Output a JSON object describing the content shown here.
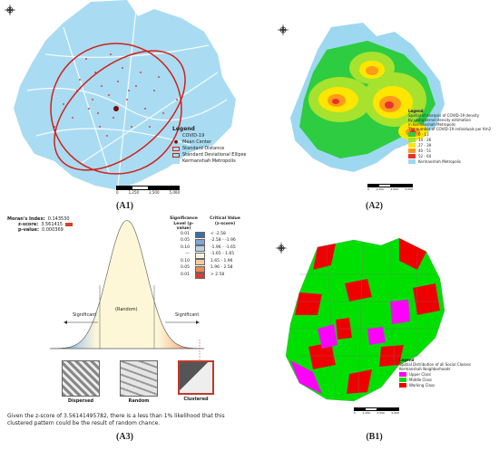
{
  "panels": {
    "a1": {
      "label": "(A1)",
      "legend_title": "Legend",
      "legend_items": [
        "COVID-19",
        "Mean Center",
        "Standard Distance",
        "Standard Deviational Ellipse",
        "Kermanshah Metropolis"
      ],
      "scale": [
        "0",
        "1,250",
        "2,500",
        "5,000"
      ]
    },
    "a2": {
      "label": "(A2)",
      "legend_lines": [
        "Legend",
        "Spatial of analysis of COVID-19 density",
        "by using kernel density estimation",
        "in Kermanshah Metropolis",
        "The number of COVID-19 individuals per Km2"
      ],
      "legend_classes": [
        "0 - 13",
        "14 - 26",
        "27 - 39",
        "40 - 51",
        "52 - 64",
        "Kermanshah Metropolis"
      ],
      "class_colors": [
        "#2ecc40",
        "#a6e22e",
        "#ffe600",
        "#ff9a1a",
        "#e8322b",
        "#9dd8f0"
      ],
      "scale": [
        "0",
        "1,250",
        "2,500",
        "5,000"
      ]
    },
    "a3": {
      "label": "(A3)",
      "morans_index_label": "Moran's Index:",
      "morans_index_value": "0.143530",
      "zscore_label": "z-score:",
      "zscore_value": "3.561415",
      "pvalue_label": "p-value:",
      "pvalue_value": "0.000369",
      "sig_header": "Significance Level (p-value)",
      "crit_header": "Critical Value (z-score)",
      "sig_levels": [
        "0.01",
        "0.05",
        "0.10",
        "---",
        "0.10",
        "0.05",
        "0.01"
      ],
      "crit_values": [
        "< -2.58",
        "-2.58 - -1.96",
        "-1.96 - -1.65",
        "-1.65 - 1.65",
        "1.65 - 1.96",
        "1.96 - 2.58",
        "> 2.58"
      ],
      "row_colors": [
        "#3b6ea8",
        "#7fa7cf",
        "#b9d2e8",
        "#f2f2e0",
        "#f7c9a0",
        "#ef8a52",
        "#d2422c"
      ],
      "significant_left": "Significant",
      "random_label": "(Random)",
      "significant_right": "Significant",
      "pattern_labels": [
        "Dispersed",
        "Random",
        "Clustered"
      ],
      "caption": "Given the z-score of 3.56141495782, there is a less than 1% likelihood that this clustered pattern could be the result of random chance."
    },
    "b1": {
      "label": "(B1)",
      "legend_lines": [
        "Legend",
        "Spatial Distribution of all Social Classes",
        "Kermanshah Neighborhoods"
      ],
      "classes": [
        "Upper Class",
        "Middle Class",
        "Working Class"
      ],
      "class_colors": [
        "#ff00ff",
        "#00e000",
        "#ee0000"
      ],
      "scale": [
        "0",
        "1,250",
        "2,500",
        "5,000"
      ]
    }
  },
  "chart_data": {
    "type": "area",
    "title": "",
    "x_range": [
      -4,
      4
    ],
    "series": [
      {
        "values": [
          0.0001,
          0.004,
          0.054,
          0.242,
          0.399,
          0.242,
          0.054,
          0.004,
          0.0001
        ]
      }
    ],
    "x": [
      -4,
      -3,
      -2,
      -1,
      0,
      1,
      2,
      3,
      4
    ]
  },
  "colors": {
    "map_blue": "#a9dcf2",
    "road_white": "#ffffff",
    "ellipse_red": "#d0201a"
  }
}
